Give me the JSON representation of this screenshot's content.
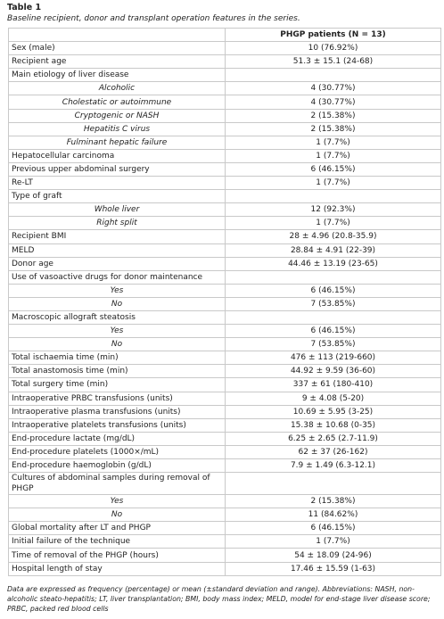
{
  "title": "Table 1",
  "caption": "Baseline recipient, donor and transplant operation features in the series.",
  "table": {
    "header": [
      "",
      "PHGP patients (N = 13)"
    ],
    "rows": [
      {
        "label": "Sex (male)",
        "value": "10 (76.92%)"
      },
      {
        "label": "Recipient age",
        "value": "51.3 ± 15.1 (24-68)"
      },
      {
        "label": "Main etiology of liver disease",
        "items": [
          {
            "label": "Alcoholic",
            "value": "4 (30.77%)"
          },
          {
            "label": "Cholestatic or autoimmune",
            "value": "4 (30.77%)"
          },
          {
            "label": "Cryptogenic or NASH",
            "value": "2 (15.38%)"
          },
          {
            "label": "Hepatitis C virus",
            "value": "2 (15.38%)"
          },
          {
            "label": "Fulminant hepatic failure",
            "value": "1 (7.7%)"
          }
        ]
      },
      {
        "label": "Hepatocellular carcinoma",
        "value": "1 (7.7%)"
      },
      {
        "label": "Previous upper abdominal surgery",
        "value": "6 (46.15%)"
      },
      {
        "label": "Re-LT",
        "value": "1 (7.7%)"
      },
      {
        "label": "Type of graft",
        "items": [
          {
            "label": "Whole liver",
            "value": "12 (92.3%)"
          },
          {
            "label": "Right split",
            "value": "1 (7.7%)"
          }
        ]
      },
      {
        "label": "Recipient BMI",
        "value": "28 ± 4.96 (20.8-35.9)"
      },
      {
        "label": "MELD",
        "value": "28.84 ± 4.91 (22-39)"
      },
      {
        "label": "Donor age",
        "value": "44.46 ± 13.19 (23-65)"
      },
      {
        "label": "Use of vasoactive drugs for donor maintenance",
        "items": [
          {
            "label": "Yes",
            "value": "6 (46.15%)"
          },
          {
            "label": "No",
            "value": "7 (53.85%)"
          }
        ]
      },
      {
        "label": "Macroscopic allograft steatosis",
        "items": [
          {
            "label": "Yes",
            "value": "6 (46.15%)"
          },
          {
            "label": "No",
            "value": "7 (53.85%)"
          }
        ]
      },
      {
        "label": "Total ischaemia time (min)",
        "value": "476 ± 113 (219-660)"
      },
      {
        "label": "Total anastomosis time (min)",
        "value": "44.92 ± 9.59 (36-60)"
      },
      {
        "label": "Total surgery time (min)",
        "value": "337 ± 61 (180-410)"
      },
      {
        "label": "Intraoperative PRBC transfusions (units)",
        "value": "9 ± 4.08 (5-20)"
      },
      {
        "label": "Intraoperative plasma transfusions (units)",
        "value": "10.69 ± 5.95 (3-25)"
      },
      {
        "label": "Intraoperative platelets transfusions (units)",
        "value": "15.38 ± 10.68 (0-35)"
      },
      {
        "label": "End-procedure lactate (mg/dL)",
        "value": "6.25 ± 2.65 (2.7-11.9)"
      },
      {
        "label": "End-procedure platelets (1000×/mL)",
        "value": "62 ± 37 (26-162)"
      },
      {
        "label": "End-procedure haemoglobin (g/dL)",
        "value": "7.9 ± 1.49 (6.3-12.1)"
      },
      {
        "label": "Cultures of abdominal samples during removal of PHGP",
        "items": [
          {
            "label": "Yes",
            "value": "2 (15.38%)"
          },
          {
            "label": "No",
            "value": "11 (84.62%)"
          }
        ]
      },
      {
        "label": "Global mortality after LT and PHGP",
        "value": "6 (46.15%)"
      },
      {
        "label": "Initial failure of the technique",
        "value": "1 (7.7%)"
      },
      {
        "label": "Time of removal of the PHGP (hours)",
        "value": "54 ± 18.09 (24-96)"
      },
      {
        "label": "Hospital length of stay",
        "value": "17.46 ± 15.59 (1-63)"
      }
    ]
  },
  "footnote": "Data are expressed as frequency (percentage) or mean (±standard deviation and range). Abbreviations: NASH, non-alcoholic steato-hepatitis; LT, liver transplantation; BMI, body mass index; MELD, model for end-stage liver disease score; PRBC, packed red blood cells"
}
